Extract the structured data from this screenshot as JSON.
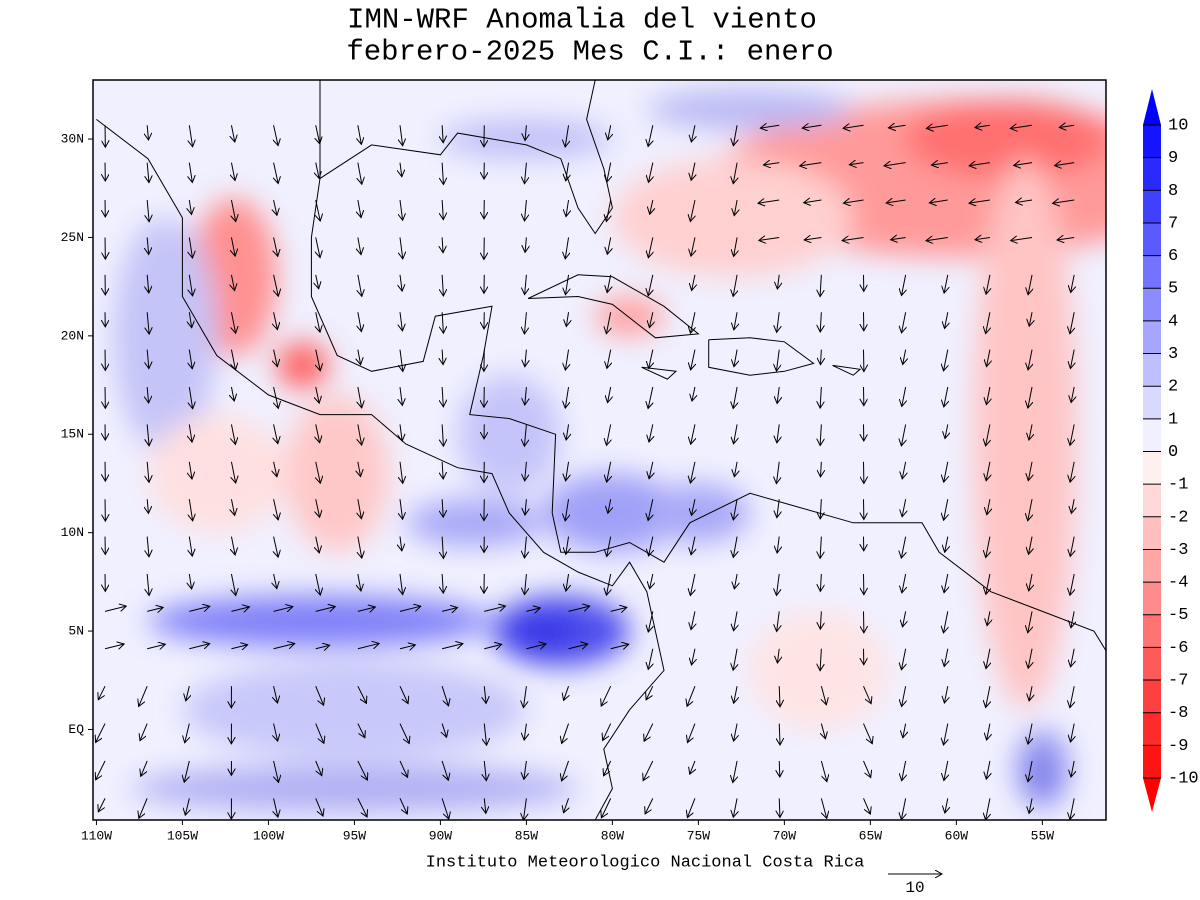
{
  "header": {
    "title": "IMN-WRF Anomalia del viento",
    "subtitle": "febrero-2025 Mes C.I.: enero"
  },
  "map": {
    "lonlim": [
      -110.2,
      -51.3
    ],
    "latlim": [
      -4.6,
      33.0
    ],
    "lon_ticks": [
      {
        "value": -110,
        "label": "110W"
      },
      {
        "value": -105,
        "label": "105W"
      },
      {
        "value": -100,
        "label": "100W"
      },
      {
        "value": -95,
        "label": "95W"
      },
      {
        "value": -90,
        "label": "90W"
      },
      {
        "value": -85,
        "label": "85W"
      },
      {
        "value": -80,
        "label": "80W"
      },
      {
        "value": -75,
        "label": "75W"
      },
      {
        "value": -70,
        "label": "70W"
      },
      {
        "value": -65,
        "label": "65W"
      },
      {
        "value": -60,
        "label": "60W"
      },
      {
        "value": -55,
        "label": "55W"
      }
    ],
    "lat_ticks": [
      {
        "value": 30,
        "label": "30N"
      },
      {
        "value": 25,
        "label": "25N"
      },
      {
        "value": 20,
        "label": "20N"
      },
      {
        "value": 15,
        "label": "15N"
      },
      {
        "value": 10,
        "label": "10N"
      },
      {
        "value": 5,
        "label": "5N"
      },
      {
        "value": 0,
        "label": "EQ"
      }
    ]
  },
  "colorbar": {
    "labels": [
      "10",
      "9",
      "8",
      "7",
      "6",
      "5",
      "4",
      "3",
      "2",
      "1",
      "0",
      "-1",
      "-2",
      "-3",
      "-4",
      "-5",
      "-6",
      "-7",
      "-8",
      "-9",
      "-10"
    ],
    "colors": [
      "#0000ff",
      "#1414ff",
      "#2a2aff",
      "#4040ff",
      "#5a5aff",
      "#7373ff",
      "#8c8cff",
      "#a6a6ff",
      "#bfbfff",
      "#d9d9ff",
      "#f0f0ff",
      "#fff0f0",
      "#ffd9d9",
      "#ffbfbf",
      "#ffa6a6",
      "#ff8c8c",
      "#ff7373",
      "#ff5a5a",
      "#ff4040",
      "#ff2a2a",
      "#ff1414",
      "#ff0000"
    ]
  },
  "footer": {
    "credit": "Instituto Meteorologico Nacional Costa Rica",
    "reference_vector": "10"
  }
}
